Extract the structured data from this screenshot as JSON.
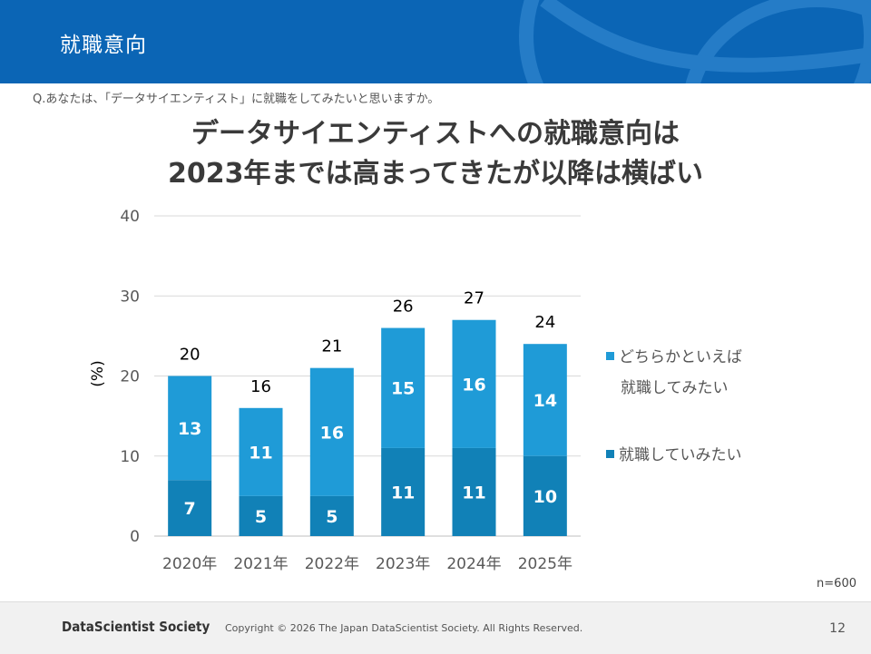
{
  "slide": {
    "title": "就職意向",
    "question": "Q.あなたは、「データサイエンティスト」に就職をしてみたいと思いますか。",
    "headline_line1": "データサイエンティストへの就職意向は",
    "headline_line2": "2023年までは高まってきたが以降は横ばい",
    "note": "n=600"
  },
  "chart_data": {
    "type": "bar",
    "stacked": true,
    "categories": [
      "2020年",
      "2021年",
      "2022年",
      "2023年",
      "2024年",
      "2025年"
    ],
    "series": [
      {
        "name": "就職していみたい",
        "values": [
          7,
          5,
          5,
          11,
          11,
          10
        ],
        "color": "#1181b7"
      },
      {
        "name": "どちらかといえば就職してみたい",
        "values": [
          13,
          11,
          16,
          15,
          16,
          14
        ],
        "color": "#1f9bd7"
      }
    ],
    "totals": [
      20,
      16,
      21,
      26,
      27,
      24
    ],
    "ylabel": "(%)",
    "ylim": [
      0,
      40
    ],
    "yticks": [
      0,
      10,
      20,
      30,
      40
    ],
    "grid": true,
    "legend": {
      "position": "right",
      "entry1_line1": "どちらかといえば",
      "entry1_line2": "就職してみたい",
      "entry2": "就職していみたい"
    }
  },
  "footer": {
    "logo": "DataScientist Society",
    "copyright": "Copyright © 2026  The Japan DataScientist Society. All Rights Reserved.",
    "page": "12"
  },
  "colors": {
    "header_blue": "#0b65b5",
    "bar_dark": "#1181b7",
    "bar_light": "#1f9bd7",
    "grid": "#d9d9d9",
    "footer_bg": "#f1f1f1"
  }
}
